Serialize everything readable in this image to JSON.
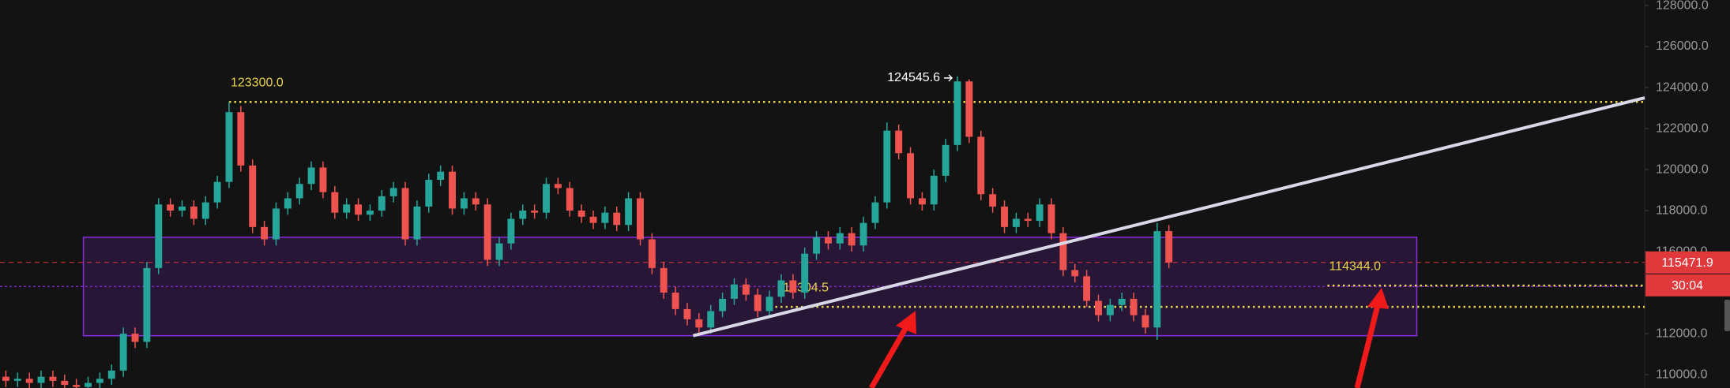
{
  "chart_data": {
    "type": "candlestick",
    "up_color": "#26a69a",
    "down_color": "#ef5350",
    "open": [
      109900,
      109700,
      109800,
      109600,
      109900,
      109700,
      109500,
      109400,
      109600,
      109800,
      110200,
      112000,
      111600,
      115200,
      118300,
      118000,
      118200,
      117600,
      118400,
      119400,
      122800,
      120200,
      117200,
      116600,
      118100,
      118600,
      119300,
      120100,
      118900,
      117900,
      118300,
      117800,
      118000,
      118700,
      119100,
      116600,
      118200,
      119500,
      119900,
      118100,
      118600,
      118300,
      115600,
      116400,
      117600,
      118000,
      117900,
      119300,
      119100,
      118000,
      117700,
      117400,
      117900,
      117300,
      118600,
      116600,
      115200,
      114000,
      113200,
      112700,
      112300,
      113100,
      113700,
      114400,
      113900,
      113100,
      113800,
      114600,
      114000,
      115900,
      116700,
      116400,
      116900,
      116300,
      117400,
      118400,
      121900,
      120800,
      118600,
      118300,
      119700,
      121200,
      124300,
      121600,
      118800,
      118200,
      117200,
      117600,
      117500,
      118300,
      116900,
      115100,
      114800,
      113600,
      112900,
      113400,
      113700,
      112900,
      112300,
      117000
    ],
    "high": [
      110200,
      110100,
      110100,
      110200,
      110200,
      110000,
      109800,
      109900,
      110100,
      110500,
      112300,
      112300,
      115500,
      118600,
      118600,
      118500,
      118500,
      118700,
      119700,
      123300,
      123100,
      120500,
      117500,
      118400,
      118900,
      119600,
      120400,
      120400,
      119200,
      118600,
      118600,
      118300,
      119000,
      119400,
      119400,
      118500,
      119800,
      120200,
      120200,
      118900,
      118900,
      118600,
      116700,
      117900,
      118300,
      118300,
      119600,
      119600,
      119400,
      118300,
      118000,
      118200,
      118200,
      118900,
      118900,
      116900,
      115500,
      114300,
      113500,
      113000,
      113400,
      114000,
      114700,
      114700,
      114200,
      114100,
      114900,
      114900,
      116200,
      117000,
      117000,
      117200,
      117200,
      117700,
      118700,
      122300,
      122200,
      121100,
      118900,
      120000,
      121500,
      124545.6,
      124400,
      121900,
      119100,
      118500,
      117900,
      117900,
      118600,
      118600,
      117200,
      115400,
      115100,
      113900,
      113700,
      114000,
      114000,
      113200,
      117400,
      117300
    ],
    "low": [
      109400,
      109400,
      109300,
      109300,
      109400,
      109200,
      109100,
      109100,
      109300,
      109500,
      109900,
      111300,
      111300,
      114900,
      117700,
      117700,
      117300,
      117300,
      118100,
      119100,
      119900,
      116900,
      116300,
      116300,
      117800,
      118300,
      119000,
      118600,
      117600,
      117600,
      117500,
      117500,
      117700,
      118400,
      116300,
      116300,
      117900,
      119200,
      117800,
      117800,
      118000,
      115300,
      115300,
      116100,
      117300,
      117600,
      117600,
      118800,
      117700,
      117400,
      117100,
      117100,
      117000,
      117000,
      116300,
      114900,
      113700,
      112900,
      112400,
      112000,
      112000,
      112800,
      113400,
      113600,
      112800,
      112800,
      113500,
      113700,
      113700,
      115600,
      116100,
      116100,
      116000,
      116000,
      117100,
      118100,
      120500,
      118300,
      118000,
      118000,
      119400,
      120900,
      121300,
      118500,
      117900,
      116900,
      116900,
      117200,
      117200,
      116600,
      114800,
      114500,
      113300,
      112600,
      112600,
      113100,
      112600,
      112000,
      111700,
      115200
    ],
    "close": [
      109700,
      109800,
      109600,
      109900,
      109700,
      109500,
      109400,
      109600,
      109800,
      110200,
      112000,
      111600,
      115200,
      118300,
      118000,
      118200,
      117600,
      118400,
      119400,
      122800,
      120200,
      117200,
      116600,
      118100,
      118600,
      119300,
      120100,
      118900,
      117900,
      118300,
      117800,
      118000,
      118700,
      119100,
      116600,
      118200,
      119500,
      119900,
      118100,
      118600,
      118300,
      115600,
      116400,
      117600,
      118000,
      117900,
      119300,
      119100,
      118000,
      117700,
      117400,
      117900,
      117300,
      118600,
      116600,
      115200,
      114000,
      113200,
      112700,
      112300,
      113100,
      113700,
      114400,
      113900,
      113100,
      113800,
      114600,
      114000,
      115900,
      116700,
      116400,
      116900,
      116300,
      117400,
      118400,
      121900,
      120800,
      118600,
      118300,
      119700,
      121200,
      124300,
      121600,
      118800,
      118200,
      117200,
      117600,
      117500,
      118300,
      116900,
      115100,
      114800,
      113600,
      112900,
      113400,
      113700,
      112900,
      112300,
      117000,
      115471.9
    ],
    "xlim": [
      -0.5,
      139.5
    ],
    "ylim": [
      109350,
      128270
    ],
    "yticks": [
      {
        "value": 110000,
        "label": "110000.0"
      },
      {
        "value": 112000,
        "label": "112000.0"
      },
      {
        "value": 114000,
        "label": "114000.0"
      },
      {
        "value": 116000,
        "label": "116000.0"
      },
      {
        "value": 118000,
        "label": "118000.0"
      },
      {
        "value": 120000,
        "label": "120000.0"
      },
      {
        "value": 122000,
        "label": "122000.0"
      },
      {
        "value": 124000,
        "label": "124000.0"
      },
      {
        "value": 126000,
        "label": "126000.0"
      },
      {
        "value": 128000,
        "label": "128000.0"
      }
    ],
    "high_marker": {
      "x": 81,
      "value": 124545.6,
      "label": "124545.6"
    },
    "levels": [
      {
        "value": 123300,
        "label": "123300.0",
        "start": 19,
        "color": "#e8d44d"
      },
      {
        "value": 113304.5,
        "label": "113304.5",
        "start": 65.5,
        "color": "#e8d44d"
      },
      {
        "value": 114344,
        "label": "114344.0",
        "start": 112.5,
        "color": "#e8d44d"
      }
    ],
    "range_box": {
      "x": [
        6.6,
        120.1
      ],
      "y": [
        111900,
        116700
      ],
      "mid": 114300,
      "color": "#8c2be2"
    },
    "trendline": {
      "x": [
        58.5,
        139.5
      ],
      "y": [
        111900,
        123500
      ],
      "color": "#d8d8e8"
    },
    "current_price": {
      "value": 115471.9,
      "label": "115471.9",
      "countdown": "30:04",
      "color": "#e0383b"
    }
  }
}
